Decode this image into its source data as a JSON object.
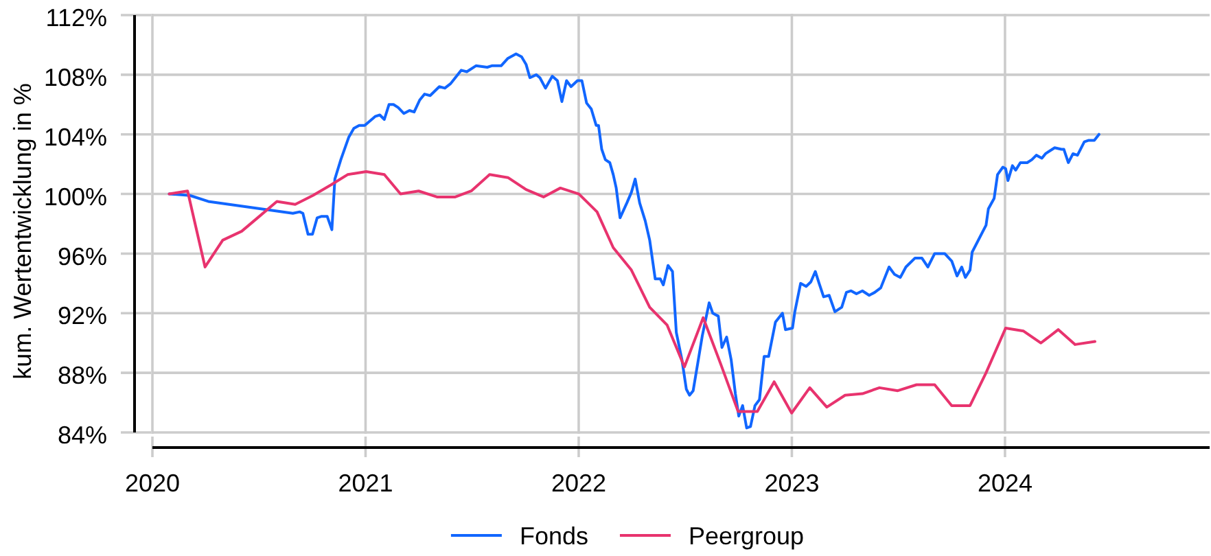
{
  "chart_data": {
    "type": "line",
    "ylabel": "kum. Wertentwicklung in %",
    "xlim": [
      2020,
      2024.96
    ],
    "xticks": [
      2020,
      2021,
      2022,
      2023,
      2024
    ],
    "ylim": [
      84,
      112
    ],
    "yticks": [
      {
        "value": 84,
        "label": "84%"
      },
      {
        "value": 88,
        "label": "88%"
      },
      {
        "value": 92,
        "label": "92%"
      },
      {
        "value": 96,
        "label": "96%"
      },
      {
        "value": 100,
        "label": "100%"
      },
      {
        "value": 104,
        "label": "104%"
      },
      {
        "value": 108,
        "label": "108%"
      },
      {
        "value": 112,
        "label": "112%"
      }
    ],
    "grid": true,
    "legend": "bottom",
    "series": [
      {
        "name": "Fonds",
        "color": "#1166ff",
        "x": [
          2020.079,
          2020.176,
          2020.262,
          2020.659,
          2020.691,
          2020.706,
          2020.73,
          2020.751,
          2020.773,
          2020.794,
          2020.82,
          2020.842,
          2020.856,
          2020.884,
          2020.921,
          2020.945,
          2020.97,
          2020.996,
          2021.045,
          2021.067,
          2021.088,
          2021.11,
          2021.131,
          2021.153,
          2021.18,
          2021.206,
          2021.228,
          2021.254,
          2021.277,
          2021.303,
          2021.346,
          2021.372,
          2021.399,
          2021.421,
          2021.449,
          2021.475,
          2021.518,
          2021.571,
          2021.592,
          2021.636,
          2021.668,
          2021.706,
          2021.732,
          2021.753,
          2021.771,
          2021.801,
          2021.818,
          2021.844,
          2021.876,
          2021.9,
          2021.921,
          2021.943,
          2021.964,
          2021.994,
          2022.015,
          2022.037,
          2022.059,
          2022.082,
          2022.093,
          2022.108,
          2022.125,
          2022.146,
          2022.162,
          2022.176,
          2022.194,
          2022.226,
          2022.247,
          2022.265,
          2022.286,
          2022.312,
          2022.333,
          2022.359,
          2022.383,
          2022.397,
          2022.419,
          2022.44,
          2022.458,
          2022.484,
          2022.505,
          2022.52,
          2022.537,
          2022.558,
          2022.58,
          2022.612,
          2022.629,
          2022.655,
          2022.672,
          2022.694,
          2022.715,
          2022.735,
          2022.751,
          2022.769,
          2022.788,
          2022.806,
          2022.827,
          2022.848,
          2022.87,
          2022.891,
          2022.923,
          2022.956,
          2022.97,
          2023.003,
          2023.014,
          2023.041,
          2023.067,
          2023.089,
          2023.11,
          2023.128,
          2023.149,
          2023.175,
          2023.202,
          2023.234,
          2023.256,
          2023.278,
          2023.303,
          2023.331,
          2023.363,
          2023.389,
          2023.417,
          2023.456,
          2023.482,
          2023.509,
          2023.535,
          2023.578,
          2023.61,
          2023.638,
          2023.67,
          2023.717,
          2023.75,
          2023.775,
          2023.797,
          2023.814,
          2023.836,
          2023.846,
          2023.911,
          2023.922,
          2023.949,
          2023.965,
          2023.99,
          2024.003,
          2024.014,
          2024.035,
          2024.05,
          2024.072,
          2024.104,
          2024.126,
          2024.147,
          2024.173,
          2024.19,
          2024.233,
          2024.265,
          2024.276,
          2024.297,
          2024.319,
          2024.34,
          2024.372,
          2024.393,
          2024.419,
          2024.441
        ],
        "values": [
          100.0,
          99.9,
          99.5,
          98.7,
          98.8,
          98.7,
          97.3,
          97.3,
          98.4,
          98.5,
          98.5,
          97.6,
          101.0,
          102.3,
          103.8,
          104.4,
          104.6,
          104.6,
          105.2,
          105.3,
          105.0,
          106.0,
          106.0,
          105.8,
          105.4,
          105.6,
          105.5,
          106.3,
          106.7,
          106.6,
          107.2,
          107.1,
          107.4,
          107.8,
          108.3,
          108.2,
          108.6,
          108.5,
          108.6,
          108.6,
          109.1,
          109.4,
          109.2,
          108.7,
          107.8,
          108.0,
          107.8,
          107.1,
          107.9,
          107.6,
          106.2,
          107.6,
          107.2,
          107.6,
          107.6,
          106.1,
          105.7,
          104.6,
          104.6,
          103.0,
          102.3,
          102.1,
          101.3,
          100.4,
          98.4,
          99.4,
          100.1,
          101.0,
          99.4,
          98.2,
          96.9,
          94.3,
          94.3,
          93.9,
          95.2,
          94.8,
          90.7,
          88.9,
          86.9,
          86.5,
          86.8,
          88.6,
          90.5,
          92.7,
          92.0,
          91.8,
          89.7,
          90.4,
          88.9,
          86.6,
          85.1,
          85.8,
          84.3,
          84.4,
          85.8,
          86.2,
          89.1,
          89.1,
          91.4,
          92.0,
          90.9,
          91.0,
          92.1,
          94.0,
          93.8,
          94.1,
          94.8,
          94.0,
          93.1,
          93.2,
          92.1,
          92.4,
          93.4,
          93.5,
          93.3,
          93.5,
          93.2,
          93.4,
          93.7,
          95.1,
          94.6,
          94.4,
          95.1,
          95.7,
          95.7,
          95.1,
          96.0,
          96.0,
          95.5,
          94.5,
          95.1,
          94.4,
          94.9,
          96.1,
          97.9,
          99.0,
          99.7,
          101.3,
          101.8,
          101.7,
          100.9,
          101.9,
          101.6,
          102.1,
          102.1,
          102.3,
          102.6,
          102.4,
          102.7,
          103.1,
          103.0,
          103.0,
          102.1,
          102.7,
          102.6,
          103.5,
          103.6,
          103.6,
          104.0
        ]
      },
      {
        "name": "Peergroup",
        "color": "#e8336e",
        "x": [
          2020.079,
          2020.165,
          2020.247,
          2020.33,
          2020.419,
          2020.502,
          2020.584,
          2020.67,
          2020.753,
          2020.837,
          2020.916,
          2021.003,
          2021.088,
          2021.164,
          2021.249,
          2021.335,
          2021.421,
          2021.496,
          2021.582,
          2021.668,
          2021.753,
          2021.835,
          2021.914,
          2022.001,
          2022.086,
          2022.162,
          2022.247,
          2022.333,
          2022.415,
          2022.496,
          2022.584,
          2022.666,
          2022.748,
          2022.838,
          2022.917,
          2022.999,
          2023.084,
          2023.164,
          2023.25,
          2023.331,
          2023.411,
          2023.497,
          2023.585,
          2023.67,
          2023.75,
          2023.836,
          2023.911,
          2024.003,
          2024.087,
          2024.168,
          2024.25,
          2024.329,
          2024.422
        ],
        "values": [
          100.0,
          100.2,
          95.1,
          96.9,
          97.5,
          98.5,
          99.5,
          99.3,
          99.9,
          100.6,
          101.3,
          101.5,
          101.3,
          100.0,
          100.2,
          99.8,
          99.8,
          100.2,
          101.3,
          101.1,
          100.3,
          99.8,
          100.4,
          100.0,
          98.8,
          96.4,
          94.9,
          92.4,
          91.2,
          88.4,
          91.7,
          88.6,
          85.4,
          85.4,
          87.4,
          85.3,
          87.0,
          85.7,
          86.5,
          86.6,
          87.0,
          86.8,
          87.2,
          87.2,
          85.8,
          85.8,
          88.0,
          91.0,
          90.8,
          90.0,
          90.9,
          89.9,
          90.1
        ]
      }
    ]
  }
}
